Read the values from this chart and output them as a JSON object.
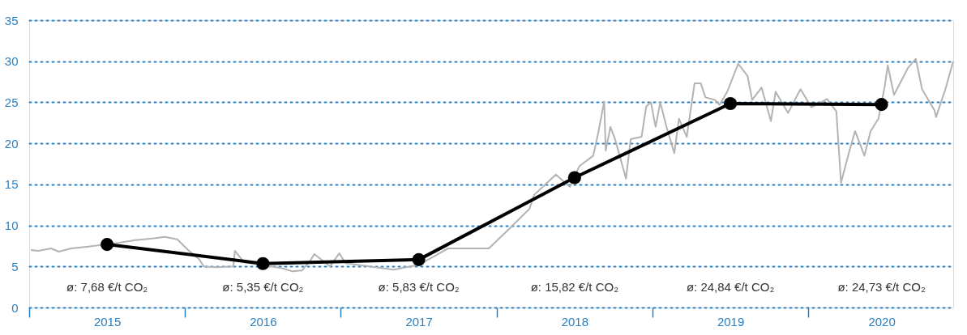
{
  "chart_data": {
    "type": "line",
    "xlim": [
      2015,
      2020.93
    ],
    "xticks": [
      {
        "value": 2015,
        "label": null
      },
      {
        "value": 2015.5,
        "label": "2015"
      },
      {
        "value": 2016,
        "label": null
      },
      {
        "value": 2016.5,
        "label": "2016"
      },
      {
        "value": 2017,
        "label": null
      },
      {
        "value": 2017.5,
        "label": "2017"
      },
      {
        "value": 2018,
        "label": null
      },
      {
        "value": 2018.5,
        "label": "2018"
      },
      {
        "value": 2019,
        "label": null
      },
      {
        "value": 2019.5,
        "label": "2019"
      },
      {
        "value": 2020,
        "label": null
      },
      {
        "value": 2020.47,
        "label": "2020"
      }
    ],
    "ylim": [
      0,
      35
    ],
    "yticks": [
      0,
      5,
      10,
      15,
      20,
      25,
      30,
      35
    ],
    "grid": "y",
    "line_style": "solid",
    "series": [
      {
        "color": "#b3b3b3",
        "marker": "none",
        "x": [
          2015.01,
          2015.06,
          2015.14,
          2015.19,
          2015.27,
          2015.37,
          2015.58,
          2015.68,
          2015.79,
          2015.87,
          2015.95,
          2016.02,
          2016.09,
          2016.12,
          2016.2,
          2016.31,
          2016.32,
          2016.38,
          2016.62,
          2016.69,
          2016.75,
          2016.8,
          2016.83,
          2016.93,
          2016.99,
          2017.03,
          2017.34,
          2017.5,
          2017.69,
          2017.95,
          2018.07,
          2018.21,
          2018.24,
          2018.38,
          2018.47,
          2018.53,
          2018.62,
          2018.65,
          2018.69,
          2018.7,
          2018.73,
          2018.76,
          2018.83,
          2018.86,
          2018.93,
          2018.96,
          2018.99,
          2019.02,
          2019.05,
          2019.09,
          2019.14,
          2019.17,
          2019.22,
          2019.27,
          2019.31,
          2019.34,
          2019.4,
          2019.43,
          2019.48,
          2019.55,
          2019.61,
          2019.64,
          2019.7,
          2019.76,
          2019.79,
          2019.87,
          2019.95,
          2020.02,
          2020.12,
          2020.18,
          2020.21,
          2020.26,
          2020.3,
          2020.36,
          2020.4,
          2020.45,
          2020.49,
          2020.51,
          2020.55,
          2020.64,
          2020.69,
          2020.73,
          2020.81,
          2020.82,
          2020.88,
          2020.93
        ],
        "values": [
          7.0,
          6.9,
          7.2,
          6.8,
          7.2,
          7.4,
          7.9,
          8.2,
          8.4,
          8.6,
          8.3,
          7.0,
          5.9,
          5.0,
          4.9,
          5.0,
          6.9,
          5.5,
          4.8,
          4.4,
          4.5,
          5.6,
          6.5,
          5.0,
          6.6,
          5.4,
          4.6,
          5.2,
          7.2,
          7.2,
          9.4,
          12.0,
          13.7,
          16.2,
          14.7,
          17.2,
          18.5,
          21.1,
          25.1,
          19.1,
          22.0,
          20.5,
          15.7,
          20.5,
          20.8,
          24.5,
          25.0,
          22.0,
          25.0,
          22.0,
          18.8,
          23.0,
          20.8,
          27.3,
          27.3,
          25.6,
          25.3,
          24.7,
          26.3,
          29.7,
          28.2,
          25.3,
          26.8,
          22.7,
          26.3,
          23.7,
          26.6,
          24.4,
          25.4,
          23.9,
          15.2,
          18.8,
          21.5,
          18.5,
          21.5,
          23.0,
          26.9,
          29.5,
          25.9,
          29.2,
          30.3,
          26.6,
          24.0,
          23.2,
          26.6,
          30.0
        ]
      },
      {
        "color": "#000000",
        "marker": "circle",
        "x": [
          2015.5,
          2016.5,
          2017.5,
          2018.5,
          2019.5,
          2020.47
        ],
        "values": [
          7.68,
          5.35,
          5.83,
          15.82,
          24.84,
          24.73
        ]
      }
    ],
    "annotations": [
      "ø: 7,68 €/t CO₂",
      "ø: 5,35 €/t CO₂",
      "ø: 5,83 €/t CO₂",
      "ø: 15,82 €/t CO₂",
      "ø: 24,84 €/t CO₂",
      "ø: 24,73 €/t CO₂"
    ]
  }
}
